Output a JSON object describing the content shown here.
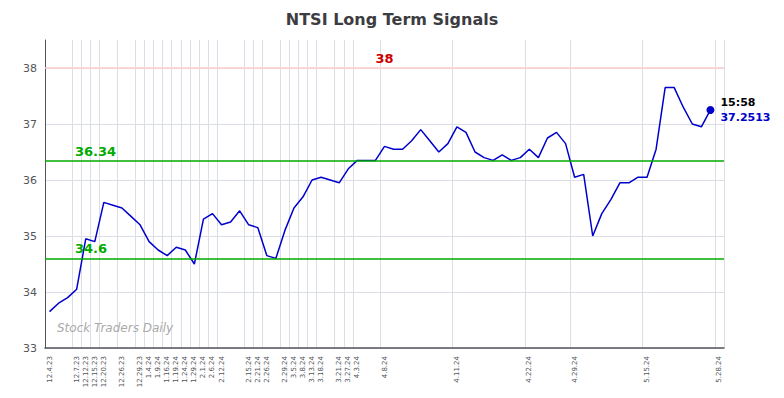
{
  "chart_data": {
    "type": "line",
    "title": "NTSI Long Term Signals",
    "categories": [
      "12.4.23",
      null,
      null,
      "12.7.23",
      "12.12.23",
      "12.15.23",
      "12.20.23",
      null,
      "12.26.23",
      null,
      "12.29.23",
      "1.4.24",
      "1.9.24",
      "1.16.24",
      "1.19.24",
      "1.24.24",
      "1.29.24",
      "2.1.24",
      "2.6.24",
      "2.12.24",
      null,
      null,
      "2.15.24",
      "2.21.24",
      "2.26.24",
      null,
      "2.29.24",
      "3.5.24",
      "3.8.24",
      "3.13.24",
      "3.18.24",
      null,
      "3.21.24",
      "3.27.24",
      "4.3.24",
      null,
      null,
      "4.8.24",
      null,
      null,
      null,
      null,
      null,
      null,
      null,
      "4.11.24",
      null,
      null,
      null,
      null,
      null,
      null,
      null,
      "4.22.24",
      null,
      null,
      null,
      null,
      "4.29.24",
      null,
      null,
      null,
      null,
      null,
      null,
      null,
      "5.15.24",
      null,
      null,
      null,
      null,
      null,
      null,
      null,
      "5.28.24"
    ],
    "values": [
      33.65,
      33.8,
      33.9,
      34.05,
      34.95,
      34.9,
      35.6,
      35.55,
      35.5,
      35.35,
      35.2,
      34.9,
      34.75,
      34.65,
      34.8,
      34.75,
      34.5,
      35.3,
      35.4,
      35.2,
      35.25,
      35.45,
      35.2,
      35.15,
      34.65,
      34.6,
      35.1,
      35.5,
      35.7,
      36.0,
      36.05,
      36.0,
      35.95,
      36.2,
      36.35,
      36.35,
      36.35,
      36.6,
      36.55,
      36.55,
      36.7,
      36.9,
      36.7,
      36.5,
      36.65,
      36.95,
      36.85,
      36.5,
      36.4,
      36.35,
      36.45,
      36.35,
      36.4,
      36.55,
      36.4,
      36.75,
      36.85,
      36.65,
      36.05,
      36.1,
      35.0,
      35.4,
      35.65,
      35.95,
      35.95,
      36.05,
      36.05,
      36.55,
      37.65,
      37.65,
      37.3,
      37.0,
      36.95,
      37.2513,
      null
    ],
    "color": "#0000cc",
    "ylim": [
      33,
      38.5
    ],
    "yticks": [
      33,
      34,
      35,
      36,
      37,
      38
    ],
    "grid": true,
    "hlines": [
      {
        "value": 38,
        "color": "#ffcccc",
        "label_color": "#cc0000"
      },
      {
        "value": 36.34,
        "color": "#00aa00",
        "label_color": "#00aa00"
      },
      {
        "value": 34.6,
        "color": "#00aa00",
        "label_color": "#00aa00"
      }
    ],
    "last_point": {
      "time": "15:58",
      "time_color": "#000000",
      "value": 37.2513,
      "marker": "circle"
    },
    "watermark": "Stock Traders Daily",
    "watermark_color": "#aaaaaa"
  }
}
